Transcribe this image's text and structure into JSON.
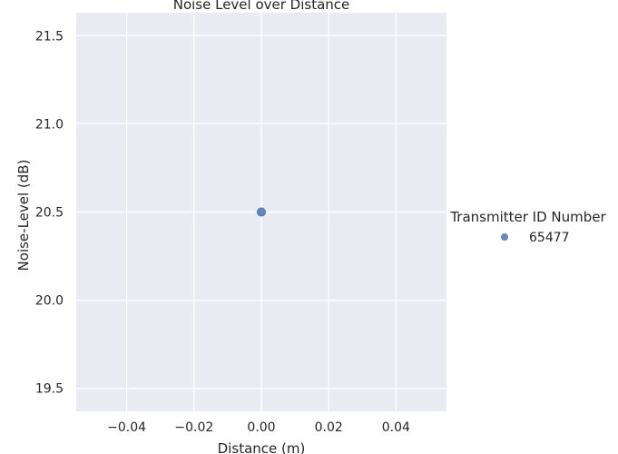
{
  "chart_data": {
    "type": "scatter",
    "title": "Noise Level over Distance",
    "xlabel": "Distance (m)",
    "ylabel": "Noise-Level (dB)",
    "xlim": [
      -0.055,
      0.055
    ],
    "ylim": [
      19.37,
      21.63
    ],
    "xticks": [
      -0.04,
      -0.02,
      0.0,
      0.02,
      0.04
    ],
    "xtick_labels": [
      "−0.04",
      "−0.02",
      "0.00",
      "0.02",
      "0.04"
    ],
    "yticks": [
      19.5,
      20.0,
      20.5,
      21.0,
      21.5
    ],
    "ytick_labels": [
      "19.5",
      "20.0",
      "20.5",
      "21.0",
      "21.5"
    ],
    "grid": true,
    "legend": {
      "title": "Transmitter ID Number",
      "placement": "right",
      "entries": [
        "65477"
      ]
    },
    "series": [
      {
        "name": "65477",
        "color": "#4c72b0",
        "points": [
          {
            "x": 0.0,
            "y": 20.5
          }
        ]
      }
    ]
  }
}
